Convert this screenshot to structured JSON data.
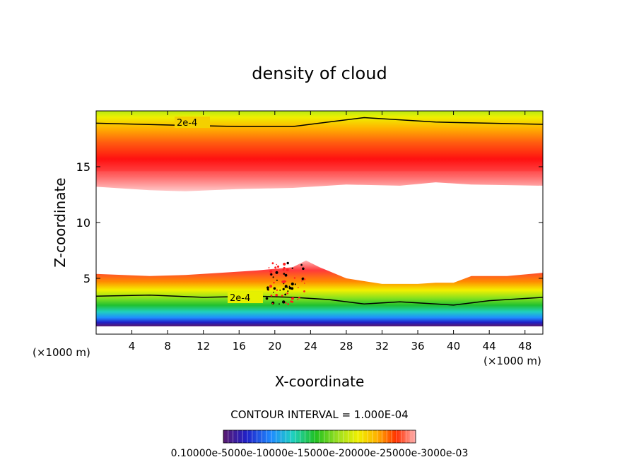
{
  "chart_data": {
    "type": "contour",
    "title": "density of cloud",
    "xlabel": "X-coordinate",
    "ylabel": "Z-coordinate",
    "x_unit_label": "(×1000 m)",
    "x_unit_label_right": "(×1000 m)",
    "xlim": [
      0,
      50
    ],
    "ylim": [
      0,
      20
    ],
    "x_ticks": [
      4,
      8,
      12,
      16,
      20,
      24,
      28,
      32,
      36,
      40,
      44,
      48
    ],
    "y_ticks": [
      5,
      10,
      15
    ],
    "contour_interval_text": "CONTOUR INTERVAL = 1.000E-04",
    "contour_line_labels": [
      "2e-4",
      "2e-4"
    ],
    "colorbar_labels_text": "0.10000e-5000e-10000e-15000e-20000e-25000e-3000e-03",
    "colormap": [
      "#5a1a6e",
      "#2020c8",
      "#1f8cff",
      "#1fd0c0",
      "#20c020",
      "#a0e020",
      "#f0f000",
      "#ffb000",
      "#ff3000",
      "#ff1010",
      "#ffb0b0"
    ],
    "upper_layer": {
      "top_z": 19.9,
      "bottom_z_profile": [
        [
          0,
          13.2
        ],
        [
          6,
          12.9
        ],
        [
          10,
          12.8
        ],
        [
          16,
          13.0
        ],
        [
          22,
          13.1
        ],
        [
          28,
          13.4
        ],
        [
          34,
          13.3
        ],
        [
          38,
          13.6
        ],
        [
          42,
          13.4
        ],
        [
          50,
          13.3
        ]
      ],
      "max_density_z": 15.2,
      "contour_2e4_profile": [
        [
          0,
          18.9
        ],
        [
          10,
          18.7
        ],
        [
          16,
          18.6
        ],
        [
          22,
          18.6
        ],
        [
          26,
          19.0
        ],
        [
          30,
          19.4
        ],
        [
          34,
          19.2
        ],
        [
          38,
          19.0
        ],
        [
          44,
          18.9
        ],
        [
          50,
          18.8
        ]
      ]
    },
    "lower_layer": {
      "bottom_z": 0.7,
      "top_z_profile": [
        [
          0,
          5.4
        ],
        [
          6,
          5.2
        ],
        [
          10,
          5.3
        ],
        [
          14,
          5.5
        ],
        [
          18,
          5.7
        ],
        [
          22,
          6.0
        ],
        [
          23.5,
          6.6
        ],
        [
          25,
          6.0
        ],
        [
          28,
          5.0
        ],
        [
          32,
          4.5
        ],
        [
          36,
          4.5
        ],
        [
          38,
          4.6
        ],
        [
          40,
          4.6
        ],
        [
          42,
          5.2
        ],
        [
          46,
          5.2
        ],
        [
          50,
          5.5
        ]
      ],
      "max_density_z": 4.2,
      "contour_2e4_profile": [
        [
          0,
          3.4
        ],
        [
          6,
          3.5
        ],
        [
          12,
          3.3
        ],
        [
          18,
          3.4
        ],
        [
          22,
          3.3
        ],
        [
          26,
          3.1
        ],
        [
          30,
          2.7
        ],
        [
          34,
          2.9
        ],
        [
          38,
          2.7
        ],
        [
          40,
          2.6
        ],
        [
          44,
          3.0
        ],
        [
          50,
          3.3
        ]
      ]
    }
  }
}
